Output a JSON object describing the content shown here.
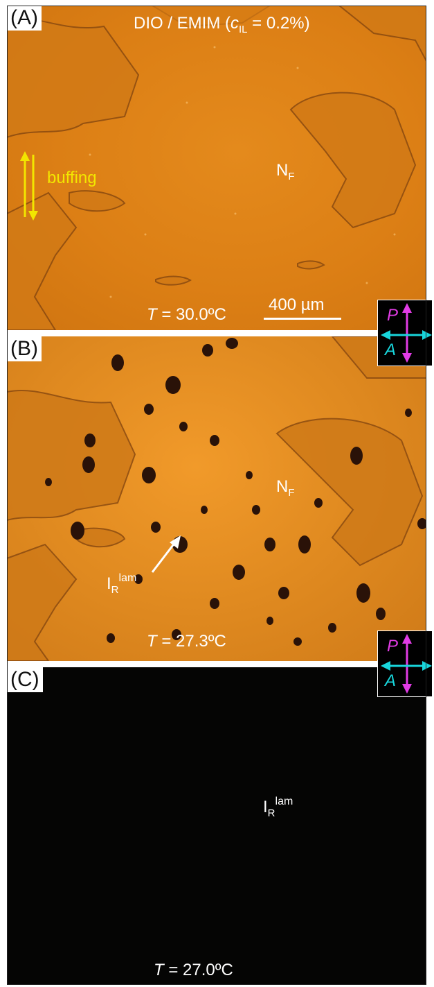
{
  "panel_a": {
    "label": "(A)",
    "title": "DIO / EMIM (",
    "title_var": "c",
    "title_sub": "IL",
    "title_tail": " = 0.2%)",
    "buffing": "buffing",
    "phase": "N",
    "phase_sub": "F",
    "temp_var": "T",
    "temp_value": " = 30.0ºC",
    "scale_bar": "400 µm"
  },
  "panel_b": {
    "label": "(B)",
    "phase": "N",
    "phase_sub": "F",
    "defect_label": "I",
    "defect_sub": "R",
    "defect_sup": "lam",
    "temp_var": "T",
    "temp_value": " = 27.3ºC"
  },
  "panel_c": {
    "label": "(C)",
    "phase": "I",
    "phase_sub": "R",
    "phase_sup": "lam",
    "temp_var": "T",
    "temp_value": " = 27.0ºC"
  },
  "polarizer": {
    "p": "P",
    "a": "A"
  },
  "colors": {
    "nematic_orange": "#e08a20",
    "domain_line": "#8a4a10",
    "defect_dark": "#2a1208",
    "buffing_yellow": "#f2e600",
    "polarizer_magenta": "#e23ce6",
    "analyzer_cyan": "#18d6dc",
    "isotropic_dark": "#050504"
  }
}
